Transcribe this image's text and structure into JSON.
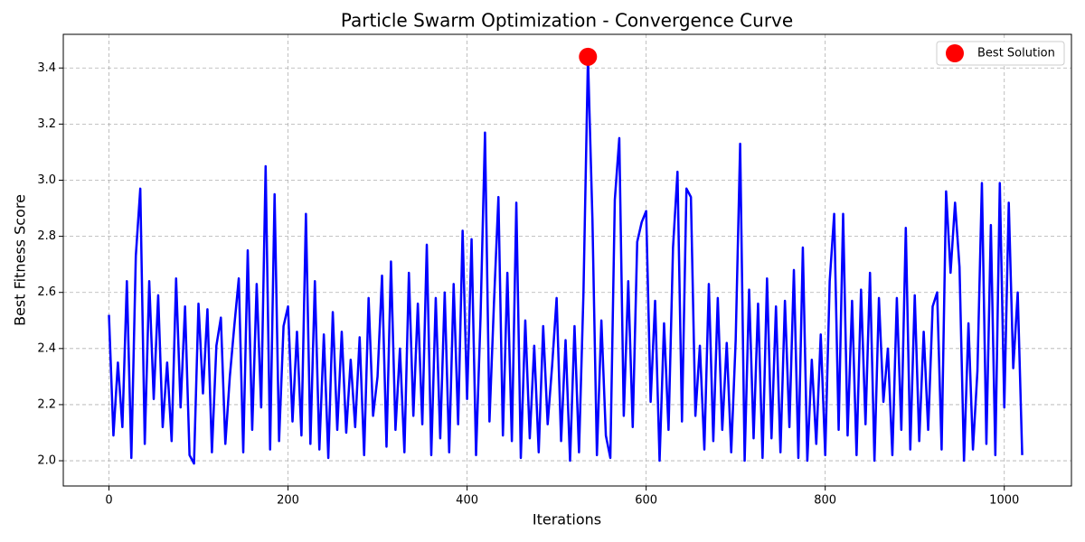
{
  "chart_data": {
    "type": "line",
    "title": "Particle Swarm Optimization - Convergence Curve",
    "x_label": "Iterations",
    "y_label": "Best Fitness Score",
    "x": [
      0,
      5,
      10,
      15,
      20,
      25,
      30,
      35,
      40,
      45,
      50,
      55,
      60,
      65,
      70,
      75,
      80,
      85,
      90,
      95,
      100,
      105,
      110,
      115,
      120,
      125,
      130,
      135,
      140,
      145,
      150,
      155,
      160,
      165,
      170,
      175,
      180,
      185,
      190,
      195,
      200,
      205,
      210,
      215,
      220,
      225,
      230,
      235,
      240,
      245,
      250,
      255,
      260,
      265,
      270,
      275,
      280,
      285,
      290,
      295,
      300,
      305,
      310,
      315,
      320,
      325,
      330,
      335,
      340,
      345,
      350,
      355,
      360,
      365,
      370,
      375,
      380,
      385,
      390,
      395,
      400,
      405,
      410,
      415,
      420,
      425,
      430,
      435,
      440,
      445,
      450,
      455,
      460,
      465,
      470,
      475,
      480,
      485,
      490,
      495,
      500,
      505,
      510,
      515,
      520,
      525,
      530,
      535,
      540,
      545,
      550,
      555,
      560,
      565,
      570,
      575,
      580,
      585,
      590,
      595,
      600,
      605,
      610,
      615,
      620,
      625,
      630,
      635,
      640,
      645,
      650,
      655,
      660,
      665,
      670,
      675,
      680,
      685,
      690,
      695,
      700,
      705,
      710,
      715,
      720,
      725,
      730,
      735,
      740,
      745,
      750,
      755,
      760,
      765,
      770,
      775,
      780,
      785,
      790,
      795,
      800,
      805,
      810,
      815,
      820,
      825,
      830,
      835,
      840,
      845,
      850,
      855,
      860,
      865,
      870,
      875,
      880,
      885,
      890,
      895,
      900,
      905,
      910,
      915,
      920,
      925,
      930,
      935,
      940,
      945,
      950,
      955,
      960,
      965,
      970,
      975,
      980,
      985,
      990,
      995,
      1000,
      1005,
      1010,
      1015,
      1020
    ],
    "series": [
      {
        "color": "#0000ff",
        "values": [
          2.52,
          2.09,
          2.35,
          2.12,
          2.64,
          2.01,
          2.73,
          2.97,
          2.06,
          2.64,
          2.22,
          2.59,
          2.12,
          2.35,
          2.07,
          2.65,
          2.19,
          2.55,
          2.02,
          1.99,
          2.56,
          2.24,
          2.54,
          2.03,
          2.41,
          2.51,
          2.06,
          2.3,
          2.48,
          2.65,
          2.03,
          2.75,
          2.11,
          2.63,
          2.19,
          3.05,
          2.04,
          2.95,
          2.07,
          2.48,
          2.55,
          2.14,
          2.46,
          2.09,
          2.88,
          2.06,
          2.64,
          2.04,
          2.45,
          2.01,
          2.53,
          2.11,
          2.46,
          2.1,
          2.36,
          2.12,
          2.44,
          2.02,
          2.58,
          2.16,
          2.3,
          2.66,
          2.05,
          2.71,
          2.11,
          2.4,
          2.03,
          2.67,
          2.16,
          2.56,
          2.13,
          2.77,
          2.02,
          2.58,
          2.08,
          2.6,
          2.03,
          2.63,
          2.13,
          2.82,
          2.22,
          2.79,
          2.02,
          2.51,
          3.17,
          2.14,
          2.56,
          2.94,
          2.09,
          2.67,
          2.07,
          2.92,
          2.01,
          2.5,
          2.08,
          2.41,
          2.03,
          2.48,
          2.13,
          2.34,
          2.58,
          2.07,
          2.43,
          2.0,
          2.48,
          2.03,
          2.6,
          3.44,
          2.86,
          2.02,
          2.5,
          2.09,
          2.01,
          2.93,
          3.15,
          2.16,
          2.64,
          2.12,
          2.78,
          2.85,
          2.89,
          2.21,
          2.57,
          2.0,
          2.49,
          2.11,
          2.76,
          3.03,
          2.14,
          2.97,
          2.94,
          2.16,
          2.41,
          2.04,
          2.63,
          2.07,
          2.58,
          2.11,
          2.42,
          2.03,
          2.43,
          3.13,
          2.0,
          2.61,
          2.08,
          2.56,
          2.01,
          2.65,
          2.08,
          2.55,
          2.03,
          2.57,
          2.12,
          2.68,
          2.01,
          2.76,
          2.0,
          2.36,
          2.06,
          2.45,
          2.02,
          2.64,
          2.88,
          2.11,
          2.88,
          2.09,
          2.57,
          2.02,
          2.61,
          2.13,
          2.67,
          2.0,
          2.58,
          2.21,
          2.4,
          2.02,
          2.58,
          2.11,
          2.83,
          2.04,
          2.59,
          2.07,
          2.46,
          2.11,
          2.55,
          2.6,
          2.04,
          2.96,
          2.67,
          2.92,
          2.69,
          2.0,
          2.49,
          2.04,
          2.32,
          2.99,
          2.06,
          2.84,
          2.02,
          2.99,
          2.19,
          2.92,
          2.33,
          2.6,
          2.02
        ]
      }
    ],
    "best": {
      "name": "Best Solution",
      "color": "#ff0000",
      "x": 535,
      "y": 3.44
    },
    "xlim": [
      -51,
      1075
    ],
    "ylim": [
      1.91,
      3.52
    ],
    "xticks": [
      0,
      200,
      400,
      600,
      800,
      1000
    ],
    "yticks": [
      {
        "value": 2,
        "label": "2.0"
      },
      {
        "value": 2.2,
        "label": "2.2"
      },
      {
        "value": 2.4,
        "label": "2.4"
      },
      {
        "value": 2.6,
        "label": "2.6"
      },
      {
        "value": 2.8,
        "label": "2.8"
      },
      {
        "value": 3,
        "label": "3.0"
      },
      {
        "value": 3.2,
        "label": "3.2"
      },
      {
        "value": 3.4,
        "label": "3.4"
      }
    ],
    "grid": true,
    "legend": "upper right"
  }
}
